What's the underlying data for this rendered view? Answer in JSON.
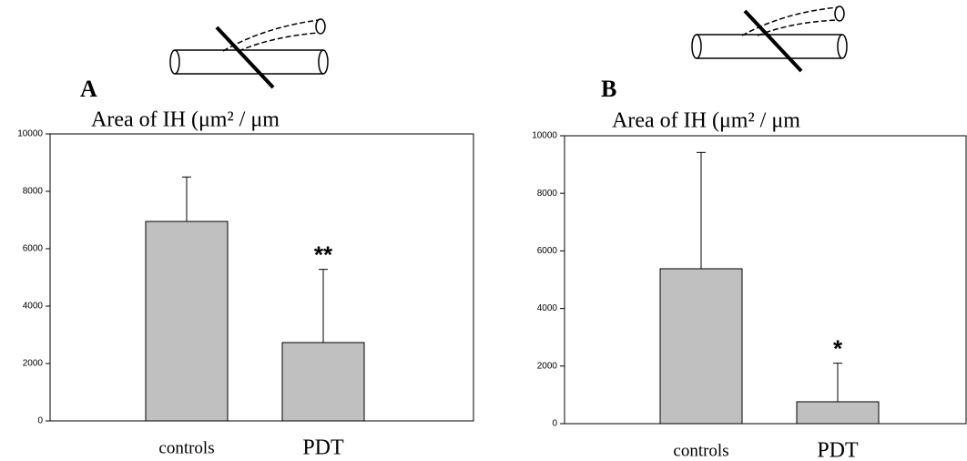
{
  "chart_data": [
    {
      "type": "bar",
      "panel": "A",
      "title": "Area of IH (μm² / μm",
      "categories": [
        "controls",
        "PDT"
      ],
      "values": [
        6950,
        2730
      ],
      "errors": [
        1550,
        2550
      ],
      "annotations": [
        "",
        "**"
      ],
      "color": "#c0c0c0",
      "ylim": [
        0,
        10000
      ],
      "yticks": [
        0,
        2000,
        4000,
        6000,
        8000,
        10000
      ]
    },
    {
      "type": "bar",
      "panel": "B",
      "title": "Area of IH (μm² / μm",
      "categories": [
        "controls",
        "PDT"
      ],
      "values": [
        5380,
        760
      ],
      "errors": [
        4040,
        1340
      ],
      "annotations": [
        "",
        "*"
      ],
      "color": "#c0c0c0",
      "ylim": [
        0,
        10000
      ],
      "yticks": [
        0,
        2000,
        4000,
        6000,
        8000,
        10000
      ]
    }
  ]
}
